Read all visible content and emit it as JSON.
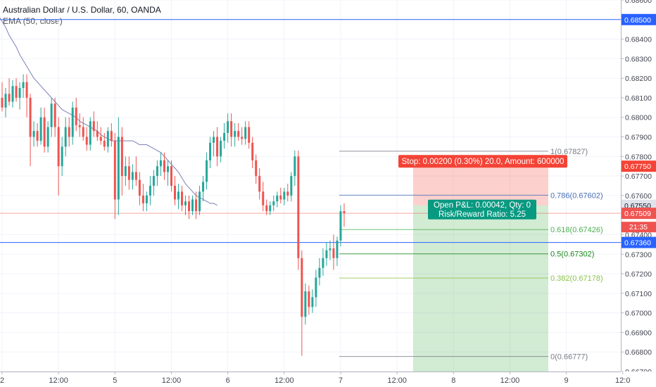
{
  "header": {
    "title": "Australian Dollar / U.S. Dollar, 60, OANDA",
    "indicator": "EMA (50, close)"
  },
  "chart_data": {
    "type": "candlestick",
    "ylim": [
      0.667,
      0.686
    ],
    "y_ticks": [
      "0.68600",
      "0.68400",
      "0.68300",
      "0.68200",
      "0.68100",
      "0.68000",
      "0.67900",
      "0.67800",
      "0.67700",
      "0.67600",
      "0.67400",
      "0.67300",
      "0.67200",
      "0.67100",
      "0.67000",
      "0.66900",
      "0.66800",
      "0.66700"
    ],
    "x_ticks": [
      "2",
      "12:00",
      "5",
      "12:00",
      "6",
      "12:00",
      "7",
      "12:00",
      "8",
      "12:00",
      "9",
      "12:0"
    ],
    "x_tick_candles": [
      0,
      16,
      32,
      48,
      64,
      80,
      96,
      112,
      128,
      144,
      160,
      176
    ],
    "candles": [
      [
        0.681,
        0.6818,
        0.6803,
        0.6805
      ],
      [
        0.6805,
        0.6815,
        0.68,
        0.6812
      ],
      [
        0.6812,
        0.682,
        0.6806,
        0.6808
      ],
      [
        0.6808,
        0.6819,
        0.6805,
        0.6816
      ],
      [
        0.6816,
        0.682,
        0.6808,
        0.681
      ],
      [
        0.681,
        0.6818,
        0.6804,
        0.6815
      ],
      [
        0.6815,
        0.6822,
        0.681,
        0.6818
      ],
      [
        0.6818,
        0.6822,
        0.68,
        0.681
      ],
      [
        0.681,
        0.6812,
        0.6775,
        0.679
      ],
      [
        0.679,
        0.6798,
        0.6785,
        0.6793
      ],
      [
        0.6793,
        0.6797,
        0.6785,
        0.6788
      ],
      [
        0.6788,
        0.6805,
        0.6786,
        0.68
      ],
      [
        0.68,
        0.6805,
        0.6782,
        0.6785
      ],
      [
        0.6785,
        0.6798,
        0.6782,
        0.6795
      ],
      [
        0.6795,
        0.681,
        0.679,
        0.6807
      ],
      [
        0.6807,
        0.681,
        0.679,
        0.6795
      ],
      [
        0.6795,
        0.68,
        0.676,
        0.6775
      ],
      [
        0.6775,
        0.679,
        0.677,
        0.6785
      ],
      [
        0.6785,
        0.68,
        0.678,
        0.6795
      ],
      [
        0.6795,
        0.68,
        0.6785,
        0.679
      ],
      [
        0.679,
        0.6808,
        0.6786,
        0.6805
      ],
      [
        0.6805,
        0.681,
        0.6793,
        0.6796
      ],
      [
        0.6796,
        0.6802,
        0.679,
        0.6795
      ],
      [
        0.6795,
        0.68,
        0.6788,
        0.679
      ],
      [
        0.679,
        0.6795,
        0.6783,
        0.6786
      ],
      [
        0.6786,
        0.68,
        0.6783,
        0.6798
      ],
      [
        0.6798,
        0.6803,
        0.679,
        0.6793
      ],
      [
        0.6793,
        0.6798,
        0.6788,
        0.679
      ],
      [
        0.679,
        0.6795,
        0.6786,
        0.6788
      ],
      [
        0.6788,
        0.6792,
        0.6783,
        0.6785
      ],
      [
        0.6785,
        0.6795,
        0.6782,
        0.6793
      ],
      [
        0.6793,
        0.6797,
        0.6785,
        0.6788
      ],
      [
        0.6788,
        0.6792,
        0.6748,
        0.6758
      ],
      [
        0.6758,
        0.68,
        0.675,
        0.679
      ],
      [
        0.679,
        0.6795,
        0.676,
        0.677
      ],
      [
        0.677,
        0.678,
        0.6765,
        0.6775
      ],
      [
        0.6775,
        0.678,
        0.6763,
        0.6768
      ],
      [
        0.6768,
        0.6776,
        0.6763,
        0.6772
      ],
      [
        0.6772,
        0.678,
        0.6765,
        0.6768
      ],
      [
        0.6768,
        0.6772,
        0.6755,
        0.676
      ],
      [
        0.676,
        0.6766,
        0.6752,
        0.6756
      ],
      [
        0.6756,
        0.6762,
        0.6752,
        0.676
      ],
      [
        0.676,
        0.677,
        0.6755,
        0.6765
      ],
      [
        0.6765,
        0.6773,
        0.676,
        0.677
      ],
      [
        0.677,
        0.6778,
        0.6765,
        0.6775
      ],
      [
        0.6775,
        0.6782,
        0.677,
        0.6778
      ],
      [
        0.6778,
        0.6782,
        0.6768,
        0.6772
      ],
      [
        0.6772,
        0.6778,
        0.6765,
        0.6775
      ],
      [
        0.6775,
        0.6778,
        0.6762,
        0.6765
      ],
      [
        0.6765,
        0.677,
        0.6755,
        0.6758
      ],
      [
        0.6758,
        0.6766,
        0.6753,
        0.6762
      ],
      [
        0.6762,
        0.6765,
        0.6752,
        0.6755
      ],
      [
        0.6755,
        0.676,
        0.675,
        0.6757
      ],
      [
        0.6757,
        0.676,
        0.6748,
        0.6752
      ],
      [
        0.6752,
        0.676,
        0.675,
        0.6758
      ],
      [
        0.6758,
        0.6762,
        0.6748,
        0.6752
      ],
      [
        0.6752,
        0.6765,
        0.675,
        0.6762
      ],
      [
        0.6762,
        0.677,
        0.6757,
        0.6767
      ],
      [
        0.6767,
        0.6782,
        0.6763,
        0.6778
      ],
      [
        0.6778,
        0.679,
        0.6774,
        0.6787
      ],
      [
        0.6787,
        0.6793,
        0.678,
        0.679
      ],
      [
        0.679,
        0.6795,
        0.6775,
        0.678
      ],
      [
        0.678,
        0.679,
        0.6777,
        0.6788
      ],
      [
        0.6788,
        0.6797,
        0.6784,
        0.6792
      ],
      [
        0.6792,
        0.6802,
        0.6787,
        0.6798
      ],
      [
        0.6798,
        0.6802,
        0.6785,
        0.679
      ],
      [
        0.679,
        0.6797,
        0.6785,
        0.6793
      ],
      [
        0.6793,
        0.6797,
        0.6788,
        0.679
      ],
      [
        0.679,
        0.6795,
        0.6786,
        0.6789
      ],
      [
        0.6789,
        0.6798,
        0.6786,
        0.6795
      ],
      [
        0.6795,
        0.6798,
        0.6784,
        0.6787
      ],
      [
        0.6787,
        0.679,
        0.6774,
        0.6778
      ],
      [
        0.6778,
        0.6781,
        0.6766,
        0.677
      ],
      [
        0.677,
        0.6774,
        0.6758,
        0.6762
      ],
      [
        0.6762,
        0.6767,
        0.6752,
        0.6755
      ],
      [
        0.6755,
        0.6758,
        0.675,
        0.6752
      ],
      [
        0.6752,
        0.6757,
        0.675,
        0.6755
      ],
      [
        0.6755,
        0.676,
        0.6752,
        0.6757
      ],
      [
        0.6757,
        0.6762,
        0.6754,
        0.676
      ],
      [
        0.676,
        0.6764,
        0.6756,
        0.6758
      ],
      [
        0.6758,
        0.6764,
        0.6755,
        0.6762
      ],
      [
        0.6762,
        0.6766,
        0.6757,
        0.676
      ],
      [
        0.676,
        0.6772,
        0.6757,
        0.677
      ],
      [
        0.677,
        0.6783,
        0.6765,
        0.678
      ],
      [
        0.678,
        0.6783,
        0.6722,
        0.6728
      ],
      [
        0.6728,
        0.6732,
        0.6678,
        0.6698
      ],
      [
        0.6698,
        0.6715,
        0.6694,
        0.6711
      ],
      [
        0.6711,
        0.6714,
        0.6699,
        0.6703
      ],
      [
        0.6703,
        0.6712,
        0.67,
        0.6708
      ],
      [
        0.6708,
        0.6722,
        0.6703,
        0.6718
      ],
      [
        0.6718,
        0.6728,
        0.6714,
        0.6723
      ],
      [
        0.6723,
        0.6733,
        0.6719,
        0.6728
      ],
      [
        0.6728,
        0.6736,
        0.6724,
        0.6732
      ],
      [
        0.6732,
        0.6737,
        0.6727,
        0.6733
      ],
      [
        0.6733,
        0.674,
        0.6722,
        0.6728
      ],
      [
        0.6728,
        0.6739,
        0.6724,
        0.6737
      ],
      [
        0.6737,
        0.6755,
        0.6734,
        0.6752
      ],
      [
        0.6752,
        0.6756,
        0.6744,
        0.6751
      ]
    ],
    "ema": [
      0.6858,
      0.6855,
      0.6852,
      0.6849,
      0.6846,
      0.6842,
      0.6839,
      0.6836,
      0.6832,
      0.6829,
      0.6826,
      0.6823,
      0.682,
      0.6818,
      0.6816,
      0.6814,
      0.6812,
      0.681,
      0.6808,
      0.6806,
      0.6804,
      0.6803,
      0.6802,
      0.6801,
      0.68,
      0.6798,
      0.6797,
      0.6796,
      0.6795,
      0.6794,
      0.6793,
      0.6791,
      0.679,
      0.6789,
      0.6788,
      0.6788,
      0.6788,
      0.6788,
      0.6788,
      0.6788,
      0.6788,
      0.6787,
      0.6786,
      0.6786,
      0.6786,
      0.6785,
      0.6784,
      0.6783,
      0.6782,
      0.678,
      0.6778,
      0.6776,
      0.6774,
      0.6772,
      0.6769,
      0.6766,
      0.6764,
      0.6762,
      0.676,
      0.6759,
      0.6758,
      0.6757,
      0.6756,
      0.6756,
      0.6755
    ],
    "ema_start_candle": 33,
    "horizontal_lines": [
      {
        "price": 0.685,
        "label": "0.68500",
        "color": "#2962ff"
      },
      {
        "price": 0.6736,
        "label": "0.67360",
        "color": "#2962ff"
      },
      {
        "price": 0.67509,
        "label": "0.67509",
        "color": "#ef5350"
      }
    ],
    "fib_levels": [
      {
        "ratio": "1",
        "price": 0.67827,
        "label": "1(0.67827)",
        "color": "#787b86"
      },
      {
        "ratio": "0.786",
        "price": 0.67602,
        "label": "0.786(0.67602)",
        "color": "#4a6fb5"
      },
      {
        "ratio": "0.618",
        "price": 0.67426,
        "label": "0.618(0.67426)",
        "color": "#4caf50"
      },
      {
        "ratio": "0.5",
        "price": 0.67302,
        "label": "0.5(0.67302)",
        "color": "#1b8a1b"
      },
      {
        "ratio": "0.382",
        "price": 0.67178,
        "label": "0.382(0.67178)",
        "color": "#8bc34a"
      },
      {
        "ratio": "0",
        "price": 0.66777,
        "label": "0(0.66777)",
        "color": "#787b86"
      }
    ],
    "position": {
      "entry": 0.6755,
      "stop": 0.6775,
      "target": 0.665,
      "stop_label": "Stop: 0.00200 (0.30%) 20.0, Amount: 600000",
      "pnl_label": "Open P&L: 0.00042, Qty: 0",
      "rr_label": "Risk/Reward Ratio: 5.25",
      "stop_color": "#f44336",
      "target_color": "#089981"
    },
    "price_tags": [
      {
        "price": 0.685,
        "label": "0.68500",
        "bg": "#2962ff",
        "fg": "#ffffff"
      },
      {
        "price": 0.6775,
        "label": "0.67750",
        "bg": "#f44336",
        "fg": "#ffffff"
      },
      {
        "price": 0.6755,
        "label": "0.67550",
        "bg": "#e0e3eb",
        "fg": "#131722"
      },
      {
        "price": 0.67509,
        "label": "0.67509",
        "bg": "#ef5350",
        "fg": "#ffffff"
      },
      {
        "price": 0.6736,
        "label": "0.67360",
        "bg": "#2962ff",
        "fg": "#ffffff"
      }
    ],
    "countdown": "21:35",
    "up_color": "#26a69a",
    "down_color": "#ef5350"
  }
}
